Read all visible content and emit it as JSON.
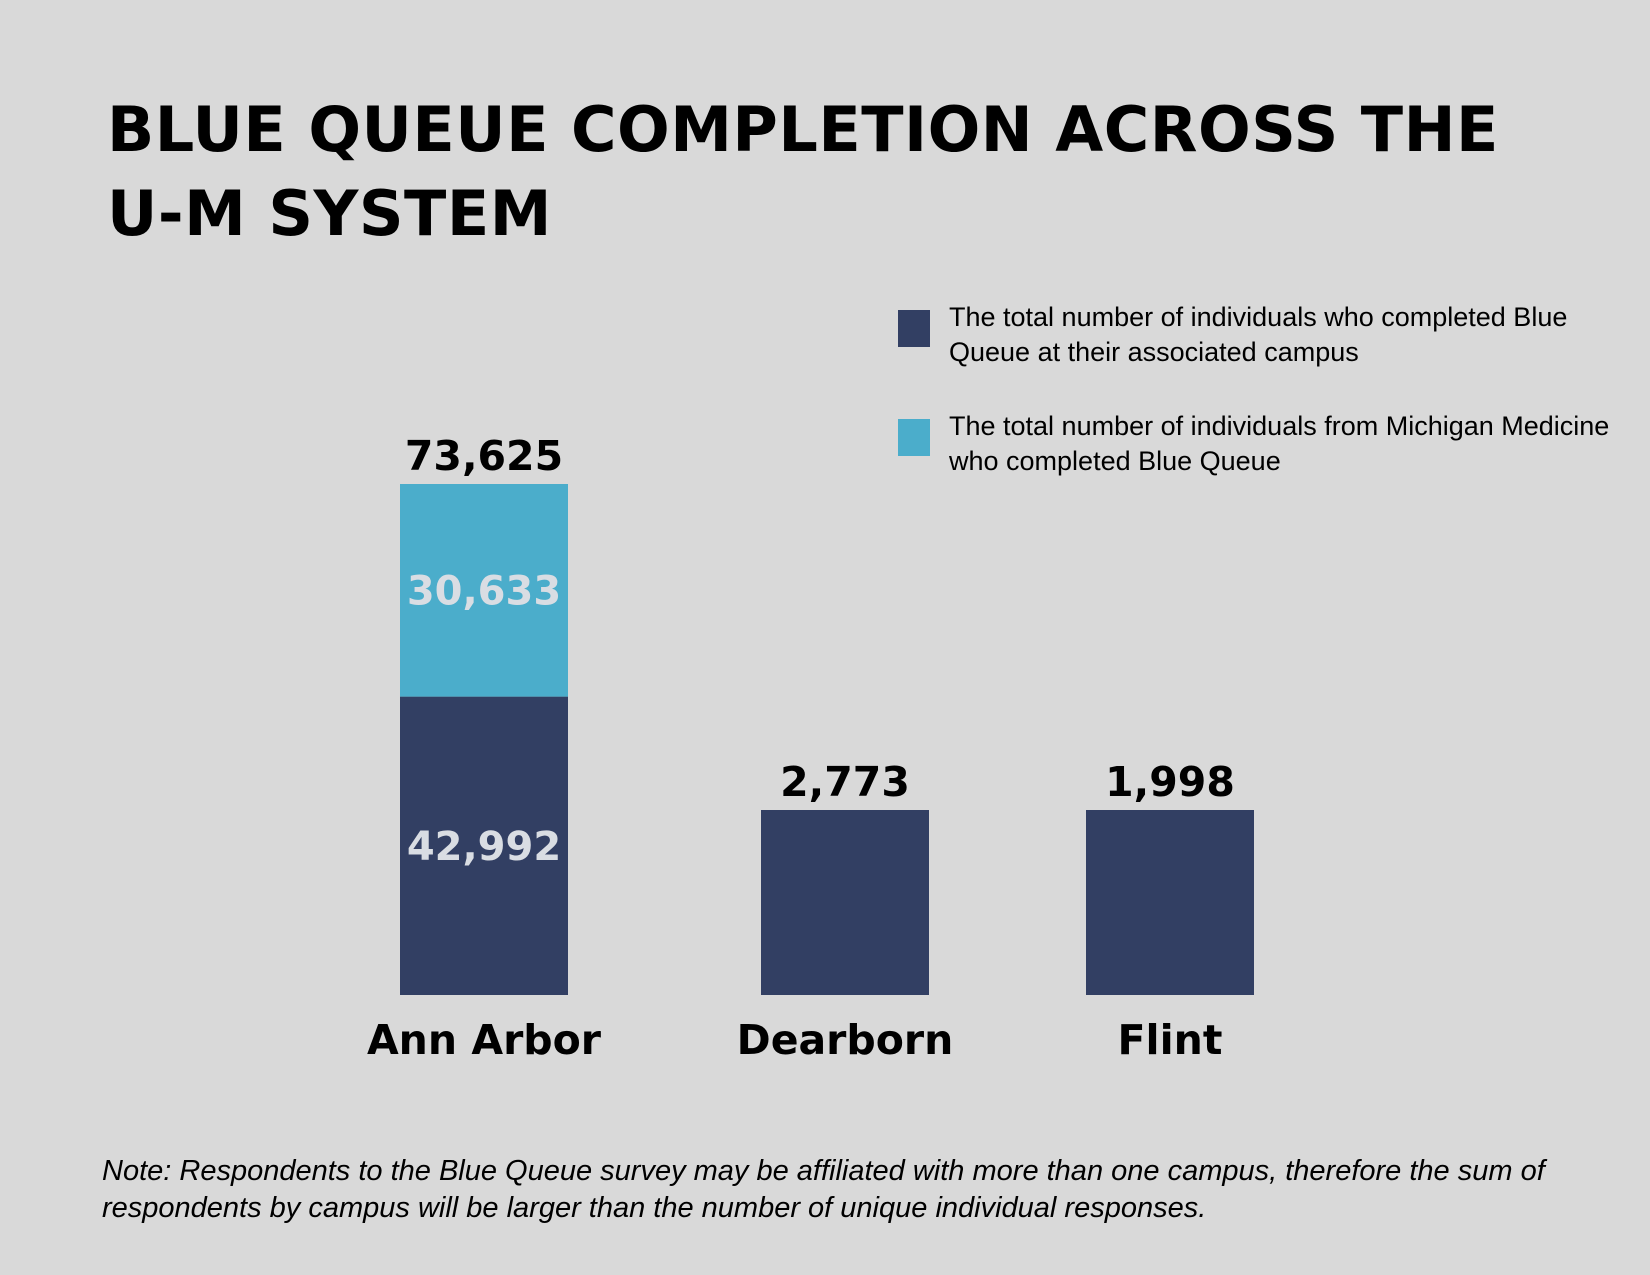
{
  "title": "BLUE QUEUE COMPLETION ACROSS THE U-M SYSTEM",
  "legend": [
    {
      "label": "The total number of individuals who completed Blue Queue at their associated campus",
      "color": "#323f63"
    },
    {
      "label": "The total number of individuals from Michigan Medicine who completed Blue Queue",
      "color": "#4badcb"
    }
  ],
  "note": "Note: Respondents to the Blue Queue survey may be affiliated with more than one campus, therefore the sum of respondents by campus will be larger than the number of unique individual responses.",
  "colors": {
    "dark": "#323f63",
    "light": "#4badcb",
    "inside_label": "#d9dde3",
    "background": "#d9d9d9"
  },
  "chart_data": {
    "type": "bar",
    "stacked": true,
    "categories": [
      "Ann Arbor",
      "Dearborn",
      "Flint"
    ],
    "series": [
      {
        "values": [
          42992,
          2773,
          1998
        ],
        "color": "#323f63",
        "value_labels": [
          "42,992",
          "",
          ""
        ]
      },
      {
        "values": [
          30633,
          0,
          0
        ],
        "color": "#4badcb",
        "value_labels": [
          "30,633",
          "",
          ""
        ]
      }
    ],
    "totals": [
      73625,
      2773,
      1998
    ],
    "total_labels": [
      "73,625",
      "2,773",
      "1,998"
    ],
    "legend_position": "top-right",
    "grid": false
  }
}
